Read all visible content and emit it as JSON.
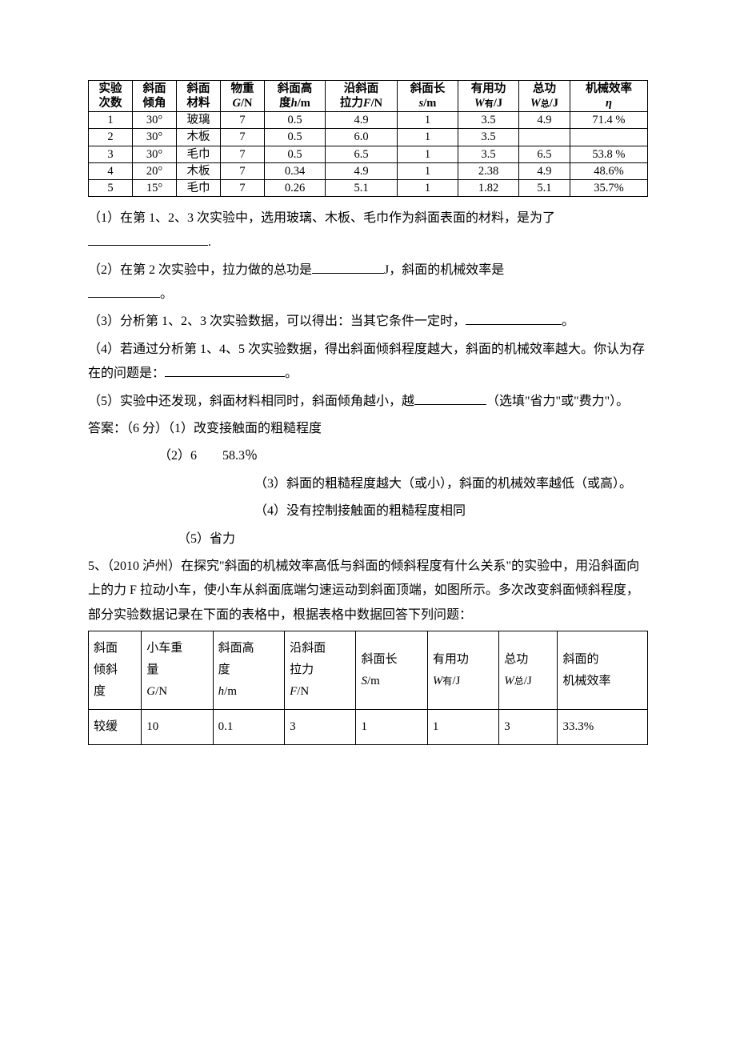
{
  "table1": {
    "headers": [
      "实验\n次数",
      "斜面\n倾角",
      "斜面\n材料",
      "物重\nG/N",
      "斜面高\n度h/m",
      "沿斜面\n拉力F/N",
      "斜面长\ns/m",
      "有用功\nW有/J",
      "总功\nW总/J",
      "机械效率\nη"
    ],
    "rows": [
      [
        "1",
        "30°",
        "玻璃",
        "7",
        "0.5",
        "4.9",
        "1",
        "3.5",
        "4.9",
        "71.4 %"
      ],
      [
        "2",
        "30°",
        "木板",
        "7",
        "0.5",
        "6.0",
        "1",
        "3.5",
        "",
        ""
      ],
      [
        "3",
        "30°",
        "毛巾",
        "7",
        "0.5",
        "6.5",
        "1",
        "3.5",
        "6.5",
        "53.8 %"
      ],
      [
        "4",
        "20°",
        "木板",
        "7",
        "0.34",
        "4.9",
        "1",
        "2.38",
        "4.9",
        "48.6%"
      ],
      [
        "5",
        "15°",
        "毛巾",
        "7",
        "0.26",
        "5.1",
        "1",
        "1.82",
        "5.1",
        "35.7%"
      ]
    ]
  },
  "q1_pre": "（1）在第 1、2、3 次实验中，选用玻璃、木板、毛巾作为斜面表面的材料，是为了",
  "q1_post": ".",
  "q2_a": "（2）在第 2 次实验中，拉力做的总功是",
  "q2_b": "J，斜面的机械效率是",
  "q2_c": "。",
  "q3_a": "（3）分析第 1、2、3 次实验数据，可以得出：当其它条件一定时，",
  "q3_b": "。",
  "q4_a": "（4）若通过分析第 1、4、5 次实验数据，得出斜面倾斜程度越大，斜面的机械效率越大。你认为存在的问题是：",
  "q4_b": "。",
  "q5_a": "（5）实验中还发现，斜面材料相同时，斜面倾角越小，越",
  "q5_b": "（选填\"省力\"或\"费力\"）。",
  "ans_head": "答案：（6 分）（1）改变接触面的粗糙程度",
  "ans2": "（2）6　　58.3％",
  "ans3": "（3）斜面的粗糙程度越大（或小），斜面的机械效率越低（或高）。",
  "ans4": "（4）没有控制接触面的粗糙程度相同",
  "ans5": "（5）省力",
  "p5": "5、（2010 泸州）在探究\"斜面的机械效率高低与斜面的倾斜程度有什么关系\"的实验中，用沿斜面向上的力 F 拉动小车，使小车从斜面底端匀速运动到斜面顶端，如图所示。多次改变斜面倾斜程度，部分实验数据记录在下面的表格中，根据表格中数据回答下列问题：",
  "table2": {
    "headers": [
      "斜面倾斜度",
      "小车重量\nG/N",
      "斜面高度\nh/m",
      "沿斜面拉力\nF/N",
      "斜面长\nS/m",
      "有用功\nW有/J",
      "总功\nW总/J",
      "斜面的机械效率"
    ],
    "rows": [
      [
        "较缓",
        "10",
        "0.1",
        "3",
        "1",
        "1",
        "3",
        "33.3%"
      ]
    ]
  }
}
